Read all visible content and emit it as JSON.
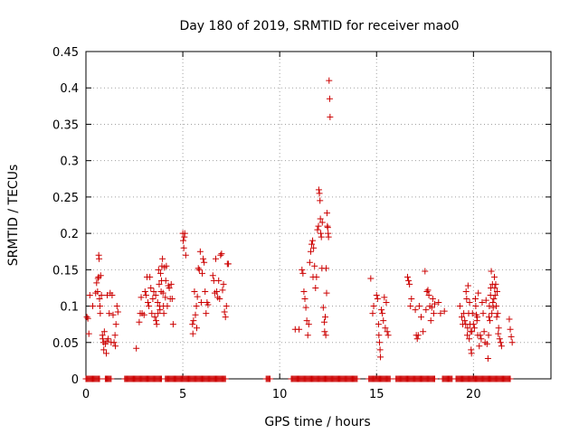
{
  "chart_data": {
    "type": "scatter",
    "title": "Day 180 of 2019, SRMTID for receiver mao0",
    "xlabel": "GPS time / hours",
    "ylabel": "SRMTID / TECUs",
    "xlim": [
      0,
      24
    ],
    "ylim": [
      0,
      0.45
    ],
    "xticks": [
      0,
      5,
      10,
      15,
      20
    ],
    "xtick_labels": [
      "0",
      "5",
      "10",
      "15",
      "20"
    ],
    "yticks": [
      0,
      0.05,
      0.1,
      0.15,
      0.2,
      0.25,
      0.3,
      0.35,
      0.4,
      0.45
    ],
    "ytick_labels": [
      "0",
      "0.05",
      "0.1",
      "0.15",
      "0.2",
      "0.25",
      "0.3",
      "0.35",
      "0.4",
      "0.45"
    ],
    "grid": true,
    "marker": "+",
    "color": "#cc0000",
    "series": [
      {
        "name": "SRMTID",
        "points": [
          [
            0.05,
            0.085
          ],
          [
            0.1,
            0.083
          ],
          [
            0.15,
            0.062
          ],
          [
            0.2,
            0.115
          ],
          [
            0.35,
            0.1
          ],
          [
            0.5,
            0.118
          ],
          [
            0.55,
            0.132
          ],
          [
            0.6,
            0.12
          ],
          [
            0.62,
            0.138
          ],
          [
            0.65,
            0.14
          ],
          [
            0.66,
            0.17
          ],
          [
            0.68,
            0.165
          ],
          [
            0.7,
            0.11
          ],
          [
            0.72,
            0.1
          ],
          [
            0.74,
            0.09
          ],
          [
            0.76,
            0.142
          ],
          [
            0.8,
            0.115
          ],
          [
            0.85,
            0.06
          ],
          [
            0.87,
            0.055
          ],
          [
            0.9,
            0.05
          ],
          [
            0.92,
            0.04
          ],
          [
            0.95,
            0.065
          ],
          [
            1.0,
            0.048
          ],
          [
            1.05,
            0.035
          ],
          [
            1.08,
            0.052
          ],
          [
            1.1,
            0.115
          ],
          [
            1.15,
            0.055
          ],
          [
            1.2,
            0.09
          ],
          [
            1.25,
            0.118
          ],
          [
            1.3,
            0.05
          ],
          [
            1.35,
            0.115
          ],
          [
            1.4,
            0.088
          ],
          [
            1.45,
            0.05
          ],
          [
            1.5,
            0.06
          ],
          [
            1.52,
            0.045
          ],
          [
            1.55,
            0.075
          ],
          [
            1.6,
            0.1
          ],
          [
            1.65,
            0.092
          ],
          [
            2.6,
            0.042
          ],
          [
            2.75,
            0.078
          ],
          [
            2.8,
            0.09
          ],
          [
            2.85,
            0.112
          ],
          [
            2.9,
            0.09
          ],
          [
            3.0,
            0.088
          ],
          [
            3.05,
            0.12
          ],
          [
            3.1,
            0.115
          ],
          [
            3.15,
            0.14
          ],
          [
            3.2,
            0.105
          ],
          [
            3.25,
            0.1
          ],
          [
            3.3,
            0.14
          ],
          [
            3.35,
            0.125
          ],
          [
            3.4,
            0.09
          ],
          [
            3.45,
            0.11
          ],
          [
            3.5,
            0.12
          ],
          [
            3.55,
            0.085
          ],
          [
            3.6,
            0.115
          ],
          [
            3.62,
            0.08
          ],
          [
            3.65,
            0.075
          ],
          [
            3.7,
            0.105
          ],
          [
            3.72,
            0.09
          ],
          [
            3.75,
            0.15
          ],
          [
            3.78,
            0.13
          ],
          [
            3.8,
            0.1
          ],
          [
            3.82,
            0.095
          ],
          [
            3.85,
            0.145
          ],
          [
            3.88,
            0.12
          ],
          [
            3.9,
            0.135
          ],
          [
            3.92,
            0.155
          ],
          [
            3.95,
            0.165
          ],
          [
            3.98,
            0.118
          ],
          [
            4.0,
            0.1
          ],
          [
            4.02,
            0.09
          ],
          [
            4.05,
            0.153
          ],
          [
            4.1,
            0.112
          ],
          [
            4.12,
            0.135
          ],
          [
            4.15,
            0.155
          ],
          [
            4.2,
            0.1
          ],
          [
            4.25,
            0.128
          ],
          [
            4.3,
            0.125
          ],
          [
            4.35,
            0.11
          ],
          [
            4.4,
            0.13
          ],
          [
            4.45,
            0.11
          ],
          [
            4.5,
            0.075
          ],
          [
            5.0,
            0.2
          ],
          [
            5.02,
            0.19
          ],
          [
            5.05,
            0.18
          ],
          [
            5.08,
            0.195
          ],
          [
            5.1,
            0.2
          ],
          [
            5.15,
            0.17
          ],
          [
            5.5,
            0.075
          ],
          [
            5.52,
            0.062
          ],
          [
            5.55,
            0.08
          ],
          [
            5.6,
            0.12
          ],
          [
            5.65,
            0.088
          ],
          [
            5.7,
            0.1
          ],
          [
            5.72,
            0.07
          ],
          [
            5.75,
            0.113
          ],
          [
            5.8,
            0.152
          ],
          [
            5.85,
            0.15
          ],
          [
            5.9,
            0.175
          ],
          [
            5.95,
            0.105
          ],
          [
            6.0,
            0.145
          ],
          [
            6.05,
            0.165
          ],
          [
            6.1,
            0.16
          ],
          [
            6.15,
            0.12
          ],
          [
            6.2,
            0.09
          ],
          [
            6.25,
            0.105
          ],
          [
            6.3,
            0.102
          ],
          [
            6.55,
            0.142
          ],
          [
            6.6,
            0.135
          ],
          [
            6.65,
            0.118
          ],
          [
            6.7,
            0.165
          ],
          [
            6.75,
            0.12
          ],
          [
            6.8,
            0.112
          ],
          [
            6.85,
            0.135
          ],
          [
            6.9,
            0.11
          ],
          [
            6.95,
            0.17
          ],
          [
            7.0,
            0.172
          ],
          [
            7.05,
            0.122
          ],
          [
            7.1,
            0.13
          ],
          [
            7.15,
            0.092
          ],
          [
            7.2,
            0.085
          ],
          [
            7.25,
            0.1
          ],
          [
            7.3,
            0.158
          ],
          [
            7.35,
            0.158
          ],
          [
            10.8,
            0.068
          ],
          [
            11.0,
            0.068
          ],
          [
            11.15,
            0.15
          ],
          [
            11.2,
            0.145
          ],
          [
            11.25,
            0.12
          ],
          [
            11.3,
            0.11
          ],
          [
            11.35,
            0.098
          ],
          [
            11.4,
            0.08
          ],
          [
            11.45,
            0.06
          ],
          [
            11.5,
            0.075
          ],
          [
            11.55,
            0.16
          ],
          [
            11.6,
            0.175
          ],
          [
            11.65,
            0.185
          ],
          [
            11.7,
            0.19
          ],
          [
            11.72,
            0.14
          ],
          [
            11.75,
            0.18
          ],
          [
            11.8,
            0.155
          ],
          [
            11.85,
            0.125
          ],
          [
            11.9,
            0.14
          ],
          [
            11.95,
            0.205
          ],
          [
            12.0,
            0.21
          ],
          [
            12.02,
            0.26
          ],
          [
            12.05,
            0.255
          ],
          [
            12.08,
            0.245
          ],
          [
            12.1,
            0.22
          ],
          [
            12.12,
            0.2
          ],
          [
            12.15,
            0.195
          ],
          [
            12.18,
            0.152
          ],
          [
            12.2,
            0.215
          ],
          [
            12.25,
            0.098
          ],
          [
            12.3,
            0.078
          ],
          [
            12.32,
            0.065
          ],
          [
            12.35,
            0.085
          ],
          [
            12.38,
            0.06
          ],
          [
            12.4,
            0.152
          ],
          [
            12.42,
            0.118
          ],
          [
            12.44,
            0.228
          ],
          [
            12.46,
            0.21
          ],
          [
            12.48,
            0.208
          ],
          [
            12.5,
            0.2
          ],
          [
            12.52,
            0.195
          ],
          [
            12.55,
            0.41
          ],
          [
            12.58,
            0.385
          ],
          [
            12.6,
            0.36
          ],
          [
            14.7,
            0.138
          ],
          [
            14.8,
            0.09
          ],
          [
            14.85,
            0.1
          ],
          [
            15.0,
            0.115
          ],
          [
            15.05,
            0.11
          ],
          [
            15.1,
            0.075
          ],
          [
            15.12,
            0.06
          ],
          [
            15.15,
            0.05
          ],
          [
            15.18,
            0.04
          ],
          [
            15.2,
            0.03
          ],
          [
            15.25,
            0.095
          ],
          [
            15.3,
            0.09
          ],
          [
            15.35,
            0.08
          ],
          [
            15.4,
            0.112
          ],
          [
            15.45,
            0.07
          ],
          [
            15.5,
            0.105
          ],
          [
            15.55,
            0.065
          ],
          [
            15.6,
            0.06
          ],
          [
            16.6,
            0.14
          ],
          [
            16.65,
            0.135
          ],
          [
            16.7,
            0.13
          ],
          [
            16.75,
            0.1
          ],
          [
            16.8,
            0.11
          ],
          [
            17.0,
            0.095
          ],
          [
            17.05,
            0.06
          ],
          [
            17.1,
            0.055
          ],
          [
            17.15,
            0.06
          ],
          [
            17.2,
            0.1
          ],
          [
            17.3,
            0.085
          ],
          [
            17.4,
            0.065
          ],
          [
            17.5,
            0.148
          ],
          [
            17.55,
            0.095
          ],
          [
            17.6,
            0.12
          ],
          [
            17.65,
            0.122
          ],
          [
            17.7,
            0.115
          ],
          [
            17.75,
            0.1
          ],
          [
            17.8,
            0.08
          ],
          [
            17.85,
            0.098
          ],
          [
            17.9,
            0.11
          ],
          [
            17.95,
            0.09
          ],
          [
            18.0,
            0.103
          ],
          [
            18.2,
            0.105
          ],
          [
            18.3,
            0.09
          ],
          [
            18.5,
            0.093
          ],
          [
            19.3,
            0.1
          ],
          [
            19.4,
            0.085
          ],
          [
            19.45,
            0.075
          ],
          [
            19.5,
            0.09
          ],
          [
            19.55,
            0.08
          ],
          [
            19.6,
            0.075
          ],
          [
            19.62,
            0.12
          ],
          [
            19.65,
            0.11
          ],
          [
            19.68,
            0.06
          ],
          [
            19.7,
            0.07
          ],
          [
            19.72,
            0.128
          ],
          [
            19.75,
            0.09
          ],
          [
            19.78,
            0.055
          ],
          [
            19.8,
            0.105
          ],
          [
            19.82,
            0.075
          ],
          [
            19.85,
            0.065
          ],
          [
            19.88,
            0.04
          ],
          [
            19.9,
            0.035
          ],
          [
            19.92,
            0.065
          ],
          [
            19.95,
            0.09
          ],
          [
            20.0,
            0.075
          ],
          [
            20.05,
            0.07
          ],
          [
            20.1,
            0.11
          ],
          [
            20.12,
            0.1
          ],
          [
            20.15,
            0.088
          ],
          [
            20.18,
            0.08
          ],
          [
            20.2,
            0.085
          ],
          [
            20.22,
            0.06
          ],
          [
            20.25,
            0.118
          ],
          [
            20.3,
            0.045
          ],
          [
            20.35,
            0.06
          ],
          [
            20.4,
            0.055
          ],
          [
            20.45,
            0.105
          ],
          [
            20.5,
            0.09
          ],
          [
            20.55,
            0.065
          ],
          [
            20.6,
            0.05
          ],
          [
            20.65,
            0.108
          ],
          [
            20.7,
            0.048
          ],
          [
            20.75,
            0.028
          ],
          [
            20.78,
            0.06
          ],
          [
            20.8,
            0.085
          ],
          [
            20.82,
            0.1
          ],
          [
            20.85,
            0.08
          ],
          [
            20.88,
            0.115
          ],
          [
            20.9,
            0.125
          ],
          [
            20.92,
            0.148
          ],
          [
            20.95,
            0.09
          ],
          [
            20.98,
            0.13
          ],
          [
            21.0,
            0.105
          ],
          [
            21.02,
            0.098
          ],
          [
            21.05,
            0.11
          ],
          [
            21.08,
            0.14
          ],
          [
            21.1,
            0.125
          ],
          [
            21.12,
            0.115
          ],
          [
            21.15,
            0.13
          ],
          [
            21.18,
            0.1
          ],
          [
            21.2,
            0.085
          ],
          [
            21.22,
            0.12
          ],
          [
            21.25,
            0.09
          ],
          [
            21.28,
            0.062
          ],
          [
            21.3,
            0.07
          ],
          [
            21.35,
            0.055
          ],
          [
            21.4,
            0.05
          ],
          [
            21.45,
            0.045
          ],
          [
            21.85,
            0.082
          ],
          [
            21.9,
            0.068
          ],
          [
            21.95,
            0.058
          ],
          [
            22.0,
            0.05
          ]
        ],
        "zero_runs": [
          [
            0.0,
            0.7
          ],
          [
            1.0,
            1.3
          ],
          [
            2.0,
            3.9
          ],
          [
            4.1,
            7.2
          ],
          [
            9.3,
            9.5
          ],
          [
            10.6,
            14.0
          ],
          [
            14.6,
            15.7
          ],
          [
            16.0,
            18.0
          ],
          [
            18.4,
            18.9
          ],
          [
            19.1,
            21.9
          ]
        ]
      }
    ]
  }
}
